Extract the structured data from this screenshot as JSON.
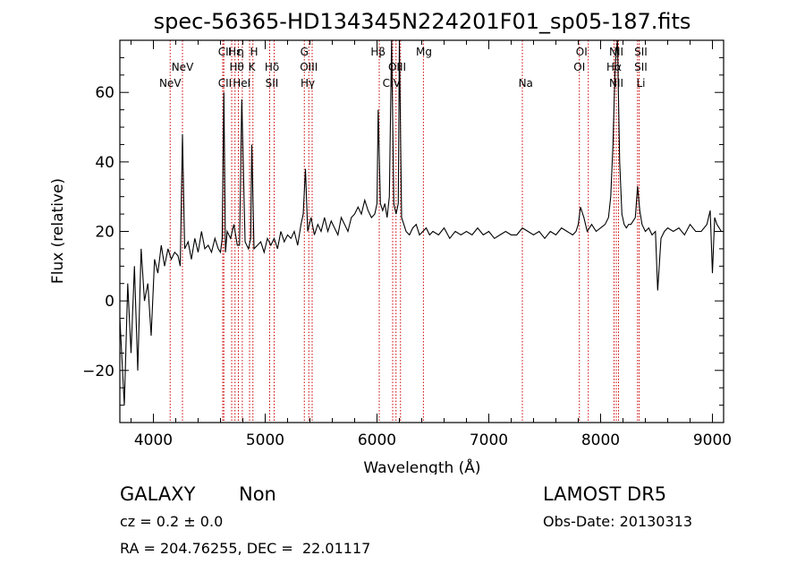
{
  "chart_data": {
    "type": "line",
    "title": "spec-56365-HD134345N224201F01_sp05-187.fits",
    "xlabel": "Wavelength (Å)",
    "ylabel": "Flux (relative)",
    "xlim": [
      3700,
      9100
    ],
    "ylim": [
      -35,
      75
    ],
    "xticks": [
      4000,
      5000,
      6000,
      7000,
      8000,
      9000
    ],
    "yticks": [
      -20,
      0,
      20,
      40,
      60
    ],
    "grid": false,
    "line_color": "#000000",
    "marker_color": "#cc0000",
    "series": [
      {
        "x": [
          3700,
          3740,
          3770,
          3800,
          3830,
          3860,
          3890,
          3920,
          3950,
          3980,
          4010,
          4040,
          4070,
          4100,
          4130,
          4160,
          4190,
          4220,
          4240,
          4260,
          4280,
          4310,
          4340,
          4370,
          4400,
          4430,
          4460,
          4490,
          4520,
          4550,
          4580,
          4600,
          4615,
          4630,
          4645,
          4660,
          4690,
          4720,
          4750,
          4770,
          4790,
          4820,
          4850,
          4870,
          4880,
          4900,
          4930,
          4960,
          4990,
          5020,
          5050,
          5080,
          5110,
          5140,
          5170,
          5200,
          5230,
          5260,
          5290,
          5320,
          5340,
          5360,
          5380,
          5410,
          5440,
          5470,
          5500,
          5530,
          5560,
          5590,
          5620,
          5650,
          5680,
          5710,
          5740,
          5770,
          5800,
          5830,
          5860,
          5890,
          5920,
          5950,
          5980,
          6000,
          6010,
          6030,
          6050,
          6070,
          6090,
          6110,
          6130,
          6150,
          6170,
          6190,
          6200,
          6220,
          6240,
          6260,
          6290,
          6320,
          6350,
          6380,
          6410,
          6440,
          6470,
          6500,
          6550,
          6600,
          6650,
          6700,
          6750,
          6800,
          6850,
          6900,
          6950,
          7000,
          7050,
          7100,
          7150,
          7200,
          7250,
          7300,
          7350,
          7400,
          7450,
          7500,
          7550,
          7600,
          7650,
          7700,
          7750,
          7780,
          7800,
          7820,
          7850,
          7880,
          7920,
          7960,
          8000,
          8040,
          8070,
          8090,
          8110,
          8130,
          8150,
          8170,
          8190,
          8210,
          8230,
          8250,
          8270,
          8290,
          8310,
          8330,
          8350,
          8370,
          8400,
          8430,
          8460,
          8490,
          8510,
          8540,
          8570,
          8600,
          8650,
          8700,
          8750,
          8800,
          8850,
          8900,
          8950,
          8980,
          9000,
          9020,
          9040,
          9060,
          9080,
          9100
        ],
        "y": [
          -5,
          -30,
          5,
          -15,
          10,
          -20,
          15,
          0,
          5,
          -10,
          12,
          8,
          16,
          10,
          15,
          12,
          14,
          13,
          10,
          48,
          15,
          17,
          12,
          18,
          14,
          20,
          15,
          16,
          14,
          18,
          15,
          14,
          18,
          60,
          14,
          20,
          18,
          22,
          16,
          16,
          58,
          17,
          15,
          18,
          45,
          15,
          16,
          17,
          14,
          18,
          16,
          18,
          15,
          20,
          17,
          19,
          18,
          20,
          16,
          22,
          25,
          38,
          20,
          24,
          19,
          22,
          20,
          24,
          20,
          23,
          21,
          19,
          24,
          22,
          20,
          24,
          25,
          27,
          25,
          29,
          26,
          24,
          25,
          28,
          55,
          28,
          26,
          28,
          24,
          30,
          75,
          28,
          25,
          28,
          75,
          24,
          22,
          20,
          19,
          21,
          22,
          19,
          20,
          21,
          19,
          20,
          19,
          21,
          18,
          20,
          19,
          20,
          19,
          21,
          19,
          20,
          18,
          19,
          20,
          19,
          19,
          21,
          20,
          19,
          20,
          18,
          20,
          19,
          21,
          20,
          19,
          20,
          22,
          27,
          24,
          20,
          22,
          20,
          21,
          22,
          24,
          30,
          45,
          68,
          75,
          40,
          25,
          22,
          21,
          22,
          22,
          23,
          24,
          33,
          26,
          22,
          20,
          21,
          19,
          20,
          3,
          18,
          20,
          21,
          20,
          21,
          19,
          22,
          20,
          20,
          22,
          26,
          8,
          24,
          22,
          21,
          20,
          20
        ]
      }
    ],
    "line_markers": [
      {
        "x": 4150,
        "label": "NeV"
      },
      {
        "x": 4260,
        "label": "NeV"
      },
      {
        "x": 4620,
        "label": "CII"
      },
      {
        "x": 4630,
        "label": "CII"
      },
      {
        "x": 4700,
        "label": "Hε"
      },
      {
        "x": 4730,
        "label": "Hθ"
      },
      {
        "x": 4760,
        "label": "Hη"
      },
      {
        "x": 4795,
        "label": "HeI"
      },
      {
        "x": 4860,
        "label": "K"
      },
      {
        "x": 4890,
        "label": "H"
      },
      {
        "x": 5040,
        "label": "SII"
      },
      {
        "x": 5080,
        "label": "Hδ"
      },
      {
        "x": 5350,
        "label": "G"
      },
      {
        "x": 5390,
        "label": "OIII"
      },
      {
        "x": 5420,
        "label": "Hγ"
      },
      {
        "x": 6020,
        "label": "Hβ"
      },
      {
        "x": 6140,
        "label": "OIII"
      },
      {
        "x": 6170,
        "label": "OIII"
      },
      {
        "x": 6210,
        "label": "OIII"
      },
      {
        "x": 6415,
        "label": "Mg"
      },
      {
        "x": 7300,
        "label": "Na"
      },
      {
        "x": 7810,
        "label": "OI"
      },
      {
        "x": 7890,
        "label": "OI"
      },
      {
        "x": 8120,
        "label": "NII"
      },
      {
        "x": 8140,
        "label": "Hα"
      },
      {
        "x": 8160,
        "label": "NII"
      },
      {
        "x": 8330,
        "label": "SII"
      },
      {
        "x": 8345,
        "label": "SII"
      }
    ],
    "marker_labels": [
      {
        "x": 4150,
        "row": 3,
        "text": "NeV"
      },
      {
        "x": 4260,
        "row": 2,
        "text": "NeV"
      },
      {
        "x": 4640,
        "row": 1,
        "text": "CII"
      },
      {
        "x": 4640,
        "row": 3,
        "text": "CII"
      },
      {
        "x": 4730,
        "row": 1,
        "text": "Hε"
      },
      {
        "x": 4745,
        "row": 2,
        "text": "Hθ"
      },
      {
        "x": 4780,
        "row": 1,
        "text": "η"
      },
      {
        "x": 4790,
        "row": 3,
        "text": "HeI"
      },
      {
        "x": 4880,
        "row": 2,
        "text": "K"
      },
      {
        "x": 4900,
        "row": 1,
        "text": "H"
      },
      {
        "x": 5060,
        "row": 2,
        "text": "Hδ"
      },
      {
        "x": 5060,
        "row": 3,
        "text": "SII"
      },
      {
        "x": 5350,
        "row": 1,
        "text": "G"
      },
      {
        "x": 5390,
        "row": 2,
        "text": "OIII"
      },
      {
        "x": 5380,
        "row": 3,
        "text": "Hγ"
      },
      {
        "x": 6010,
        "row": 1,
        "text": "Hβ"
      },
      {
        "x": 6180,
        "row": 2,
        "text": "OIII"
      },
      {
        "x": 6130,
        "row": 3,
        "text": "CIV"
      },
      {
        "x": 6420,
        "row": 1,
        "text": "Mg"
      },
      {
        "x": 7330,
        "row": 3,
        "text": "Na"
      },
      {
        "x": 7830,
        "row": 1,
        "text": "OI"
      },
      {
        "x": 7810,
        "row": 2,
        "text": "OI"
      },
      {
        "x": 8140,
        "row": 1,
        "text": "NII"
      },
      {
        "x": 8120,
        "row": 2,
        "text": "Hα"
      },
      {
        "x": 8140,
        "row": 3,
        "text": "NII"
      },
      {
        "x": 8360,
        "row": 1,
        "text": "SII"
      },
      {
        "x": 8360,
        "row": 2,
        "text": "SII"
      },
      {
        "x": 8360,
        "row": 3,
        "text": "Li"
      }
    ]
  },
  "info": {
    "class": "GALAXY",
    "subclass": "Non",
    "survey": "LAMOST DR5",
    "cz": "cz = 0.2 ± 0.0",
    "obs_date": "Obs-Date: 20130313",
    "coords": "RA = 204.76255, DEC =  22.01117"
  }
}
